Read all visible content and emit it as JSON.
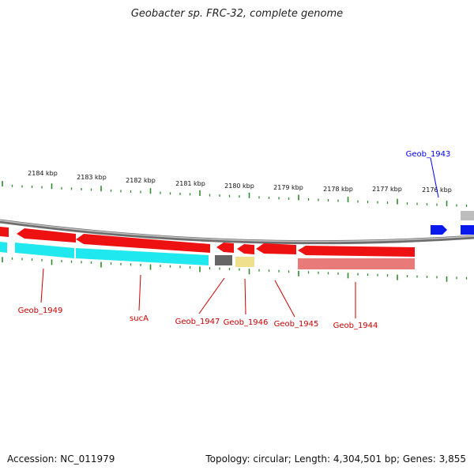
{
  "title": "Geobacter sp. FRC-32, complete genome",
  "footer": {
    "accession": "Accession: NC_011979",
    "summary": "Topology: circular; Length: 4,304,501 bp; Genes: 3,855"
  },
  "map": {
    "kbp_labels": [
      "2184 kbp",
      "2183 kbp",
      "2182 kbp",
      "2181 kbp",
      "2180 kbp",
      "2179 kbp",
      "2178 kbp",
      "2177 kbp",
      "2176 kbp"
    ],
    "gene_labels": [
      {
        "name": "Geob_1943",
        "color": "#0000ff"
      },
      {
        "name": "Geob_1949",
        "color": "#cc0000"
      },
      {
        "name": "sucA",
        "color": "#cc0000"
      },
      {
        "name": "Geob_1947",
        "color": "#cc0000"
      },
      {
        "name": "Geob_1946",
        "color": "#cc0000"
      },
      {
        "name": "Geob_1945",
        "color": "#cc0000"
      },
      {
        "name": "Geob_1944",
        "color": "#cc0000"
      }
    ],
    "colors": {
      "tick": "#2e8b2e",
      "backbone": "#8a8a8a",
      "gene_red": "#ee1111",
      "gene_blue": "#0a1aee",
      "cyan": "#1fe8ee",
      "gray_block": "#666666",
      "yellow_block": "#eee08c",
      "pink_block": "#e87a7a",
      "light_gray_block": "#bdbdbd"
    }
  }
}
